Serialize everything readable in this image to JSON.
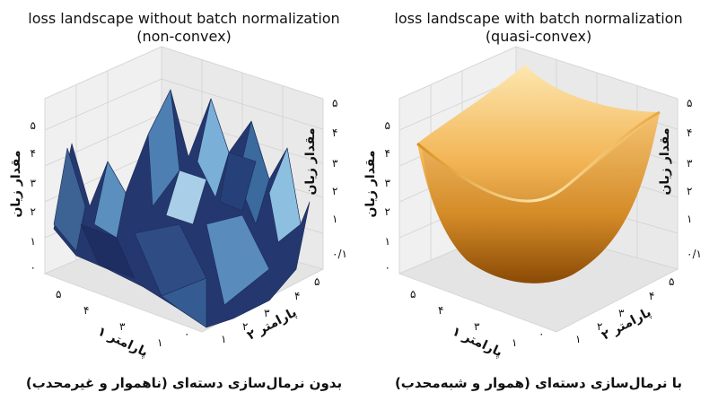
{
  "figure": {
    "panels": [
      {
        "title_line1": "loss landscape without batch normalization",
        "title_line2": "(non-convex)",
        "caption": "بدون نرمال‌سازی دسته‌ای (ناهموار و غیرمحدب)",
        "x_ticks": [
          "۰",
          "۱",
          "۳",
          "۴",
          "۵"
        ],
        "y_ticks": [
          "۱",
          "۲",
          "۳",
          "۴",
          "۵"
        ],
        "z_left_ticks": [
          "۰",
          "۱",
          "۲",
          "۳",
          "۴",
          "۵"
        ],
        "z_right_ticks": [
          "۰/۱",
          "۱",
          "۲",
          "۳",
          "۴",
          "۵"
        ]
      },
      {
        "title_line1": "loss landscape with batch normalization",
        "title_line2": "(quasi-convex)",
        "caption": "با نرمال‌سازی دسته‌ای (هموار و شبه‌محدب)",
        "x_ticks": [
          "۰",
          "۱",
          "۳",
          "۴",
          "۵"
        ],
        "y_ticks": [
          "۱",
          "۲",
          "۳",
          "۴",
          "۵"
        ],
        "z_left_ticks": [
          "۰",
          "۱",
          "۲",
          "۳",
          "۴",
          "۵"
        ],
        "z_right_ticks": [
          "۰/۱",
          "۱",
          "۲",
          "۳",
          "۴",
          "۵"
        ]
      }
    ]
  },
  "chart_data": [
    {
      "type": "surface3d",
      "title": "loss landscape without batch normalization (non-convex)",
      "xlabel": "پارامتر ۱",
      "ylabel": "پارامتر ۲",
      "zlabel": "مقدار زیان",
      "xlim": [
        0,
        5
      ],
      "ylim": [
        0,
        5
      ],
      "zlim": [
        0,
        5
      ],
      "colormap": "blues",
      "surface": "rugged many-minima landscape, z mostly between 1.5 and 5",
      "colors": {
        "low": "#1c2a5e",
        "high": "#a9cfe8"
      }
    },
    {
      "type": "surface3d",
      "title": "loss landscape with batch normalization (quasi-convex)",
      "xlabel": "پارامتر ۱",
      "ylabel": "پارامتر ۲",
      "zlabel": "مقدار زیان",
      "xlim": [
        0,
        5
      ],
      "ylim": [
        0,
        5
      ],
      "zlim": [
        0,
        5
      ],
      "colormap": "oranges",
      "surface": "smooth bowl with minimum near center, z from about 0.5 to 5",
      "colors": {
        "low": "#8a4a06",
        "high": "#fde7b0"
      }
    }
  ]
}
